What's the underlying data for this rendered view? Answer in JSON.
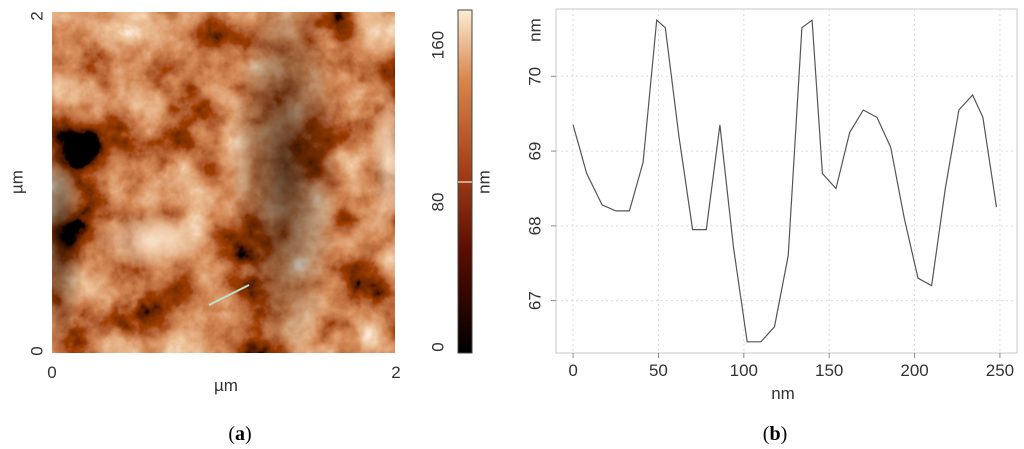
{
  "panel_a": {
    "label": "a",
    "xlabel": "µm",
    "ylabel": "µm",
    "x_ticks": [
      "0",
      "2"
    ],
    "y_ticks": [
      "0",
      "2"
    ],
    "colorbar": {
      "label": "nm",
      "ticks": [
        "0",
        "80",
        "160"
      ],
      "marker_value": 80
    }
  },
  "panel_b": {
    "label": "b",
    "xlabel": "nm",
    "ylabel": "nm"
  },
  "chart_data": [
    {
      "type": "heatmap",
      "title": "",
      "xlabel": "µm",
      "ylabel": "µm",
      "xlim": [
        0,
        2
      ],
      "ylim": [
        0,
        2
      ],
      "colorbar": {
        "label": "nm",
        "range": [
          0,
          180
        ],
        "ticks": [
          0,
          80,
          160
        ]
      },
      "colormap": [
        "#000000",
        "#5a0d00",
        "#a8431a",
        "#d9874f",
        "#fdecd4"
      ]
    },
    {
      "type": "line",
      "title": "",
      "xlabel": "nm",
      "ylabel": "nm",
      "xlim": [
        -10,
        260
      ],
      "ylim": [
        66.3,
        70.9
      ],
      "x_ticks": [
        0,
        50,
        100,
        150,
        200,
        250
      ],
      "y_ticks": [
        67,
        68,
        69,
        70
      ],
      "grid": true,
      "series": [
        {
          "x": [
            0,
            8,
            17,
            25,
            33,
            41,
            49,
            54,
            62,
            70,
            78,
            86,
            94,
            102,
            110,
            118,
            126,
            134,
            140,
            146,
            154,
            162,
            170,
            178,
            186,
            194,
            202,
            210,
            218,
            226,
            234,
            240,
            248
          ],
          "y": [
            69.35,
            68.7,
            68.28,
            68.2,
            68.2,
            68.85,
            70.75,
            70.65,
            69.2,
            67.95,
            67.95,
            69.35,
            67.7,
            66.45,
            66.45,
            66.65,
            67.6,
            70.65,
            70.75,
            68.7,
            68.5,
            69.25,
            69.55,
            69.45,
            69.05,
            68.1,
            67.3,
            67.2,
            68.5,
            69.55,
            69.75,
            69.45,
            68.25
          ]
        }
      ]
    }
  ]
}
